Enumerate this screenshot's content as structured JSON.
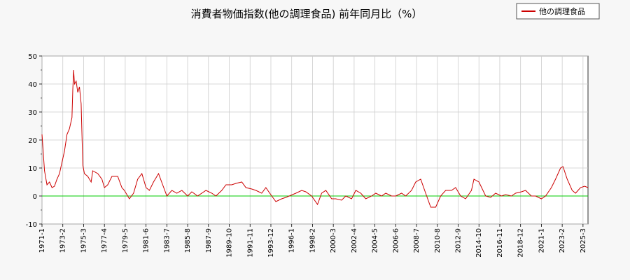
{
  "chart_data": {
    "type": "line",
    "title": "消費者物価指数(他の調理食品) 前年同月比（%）",
    "legend": {
      "entries": [
        "他の調理食品"
      ],
      "placement": "top-right"
    },
    "colors": {
      "series": "#cc0000",
      "zero_line": "#00cc00",
      "grid": "#cccccc"
    },
    "grid": true,
    "xlim": [
      "1971-01",
      "2025-09"
    ],
    "ylim": [
      -10,
      50
    ],
    "yticks": [
      -10,
      0,
      10,
      20,
      30,
      40,
      50
    ],
    "xticks": [
      "1971-1",
      "1973-2",
      "1975-3",
      "1977-4",
      "1979-5",
      "1981-6",
      "1983-7",
      "1985-8",
      "1987-9",
      "1989-10",
      "1991-11",
      "1993-12",
      "1996-1",
      "1998-2",
      "2000-3",
      "2002-4",
      "2004-5",
      "2006-6",
      "2008-7",
      "2010-8",
      "2012-9",
      "2014-10",
      "2016-11",
      "2018-12",
      "2021-1",
      "2023-2",
      "2025-3"
    ],
    "series": [
      {
        "name": "他の調理食品",
        "points": [
          [
            "1971-01",
            22
          ],
          [
            "1971-04",
            9
          ],
          [
            "1971-07",
            4
          ],
          [
            "1971-10",
            5
          ],
          [
            "1972-01",
            3
          ],
          [
            "1972-04",
            3.5
          ],
          [
            "1972-07",
            6
          ],
          [
            "1972-10",
            8
          ],
          [
            "1973-01",
            12
          ],
          [
            "1973-04",
            16
          ],
          [
            "1973-07",
            22
          ],
          [
            "1973-10",
            24
          ],
          [
            "1974-01",
            28
          ],
          [
            "1974-02",
            38
          ],
          [
            "1974-03",
            45
          ],
          [
            "1974-04",
            40
          ],
          [
            "1974-06",
            41
          ],
          [
            "1974-08",
            37
          ],
          [
            "1974-10",
            39
          ],
          [
            "1974-12",
            33
          ],
          [
            "1975-02",
            11
          ],
          [
            "1975-04",
            8
          ],
          [
            "1975-08",
            7
          ],
          [
            "1975-12",
            5
          ],
          [
            "1976-02",
            9
          ],
          [
            "1976-08",
            8
          ],
          [
            "1977-01",
            6
          ],
          [
            "1977-04",
            3
          ],
          [
            "1977-08",
            4
          ],
          [
            "1978-01",
            7
          ],
          [
            "1978-08",
            7
          ],
          [
            "1979-01",
            3
          ],
          [
            "1979-04",
            2
          ],
          [
            "1979-10",
            -1
          ],
          [
            "1980-03",
            1
          ],
          [
            "1980-08",
            6
          ],
          [
            "1981-01",
            8
          ],
          [
            "1981-06",
            3
          ],
          [
            "1981-10",
            2
          ],
          [
            "1982-03",
            5
          ],
          [
            "1982-09",
            8
          ],
          [
            "1983-02",
            4
          ],
          [
            "1983-07",
            0
          ],
          [
            "1984-01",
            2
          ],
          [
            "1984-07",
            1
          ],
          [
            "1985-01",
            2
          ],
          [
            "1985-08",
            0
          ],
          [
            "1986-01",
            1.5
          ],
          [
            "1986-08",
            0
          ],
          [
            "1987-06",
            2
          ],
          [
            "1988-01",
            1
          ],
          [
            "1988-06",
            0
          ],
          [
            "1989-01",
            2
          ],
          [
            "1989-06",
            4
          ],
          [
            "1990-01",
            4
          ],
          [
            "1990-06",
            4.5
          ],
          [
            "1991-01",
            5
          ],
          [
            "1991-06",
            3
          ],
          [
            "1992-01",
            2.5
          ],
          [
            "1992-06",
            2
          ],
          [
            "1993-01",
            1
          ],
          [
            "1993-06",
            3
          ],
          [
            "1994-01",
            0
          ],
          [
            "1994-06",
            -2
          ],
          [
            "1995-01",
            -1
          ],
          [
            "1995-06",
            -0.5
          ],
          [
            "1996-06",
            1
          ],
          [
            "1997-01",
            2
          ],
          [
            "1997-06",
            1.5
          ],
          [
            "1998-01",
            0
          ],
          [
            "1998-08",
            -3
          ],
          [
            "1999-01",
            1
          ],
          [
            "1999-06",
            2
          ],
          [
            "2000-01",
            -1
          ],
          [
            "2000-06",
            -1
          ],
          [
            "2001-01",
            -1.5
          ],
          [
            "2001-06",
            0
          ],
          [
            "2002-01",
            -1
          ],
          [
            "2002-06",
            2
          ],
          [
            "2002-12",
            1
          ],
          [
            "2003-06",
            -1
          ],
          [
            "2004-01",
            0
          ],
          [
            "2004-06",
            1
          ],
          [
            "2005-01",
            0
          ],
          [
            "2005-06",
            1
          ],
          [
            "2006-01",
            0
          ],
          [
            "2006-06",
            0
          ],
          [
            "2007-01",
            1
          ],
          [
            "2007-06",
            0
          ],
          [
            "2008-01",
            2
          ],
          [
            "2008-06",
            5
          ],
          [
            "2008-12",
            6
          ],
          [
            "2009-06",
            1
          ],
          [
            "2009-12",
            -4
          ],
          [
            "2010-06",
            -4
          ],
          [
            "2010-12",
            0
          ],
          [
            "2011-06",
            2
          ],
          [
            "2012-01",
            2
          ],
          [
            "2012-06",
            3
          ],
          [
            "2012-12",
            0
          ],
          [
            "2013-06",
            -1
          ],
          [
            "2014-01",
            2
          ],
          [
            "2014-04",
            6
          ],
          [
            "2014-10",
            5
          ],
          [
            "2015-06",
            0
          ],
          [
            "2015-12",
            -0.5
          ],
          [
            "2016-06",
            1
          ],
          [
            "2017-01",
            0
          ],
          [
            "2017-06",
            0.5
          ],
          [
            "2018-01",
            0
          ],
          [
            "2018-06",
            1
          ],
          [
            "2019-01",
            1.5
          ],
          [
            "2019-06",
            2
          ],
          [
            "2020-01",
            0
          ],
          [
            "2020-06",
            0
          ],
          [
            "2021-01",
            -1
          ],
          [
            "2021-06",
            0
          ],
          [
            "2022-01",
            3
          ],
          [
            "2022-06",
            6
          ],
          [
            "2022-12",
            10
          ],
          [
            "2023-03",
            10.5
          ],
          [
            "2023-08",
            6
          ],
          [
            "2024-02",
            2
          ],
          [
            "2024-06",
            1
          ],
          [
            "2024-12",
            3
          ],
          [
            "2025-05",
            3.5
          ],
          [
            "2025-09",
            3
          ]
        ]
      }
    ]
  }
}
